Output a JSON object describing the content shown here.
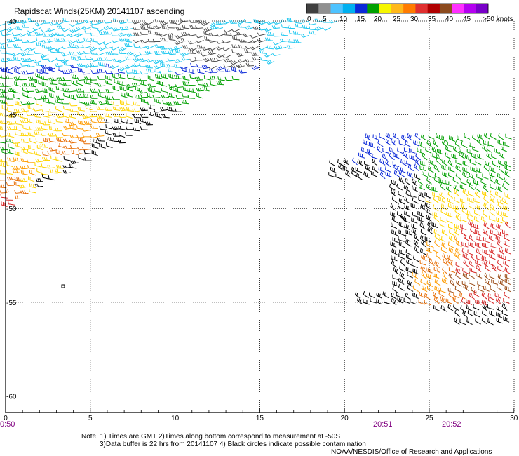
{
  "title": "Rapidscat Winds(25KM) 20141107 ascending",
  "legend": {
    "labels": [
      "0",
      "5",
      "10",
      "15",
      "20",
      "25",
      "30",
      "35",
      "40",
      "45",
      ">50 knots"
    ],
    "colors": [
      "#404040",
      "#909090",
      "#4ec3ff",
      "#00b0f0",
      "#0a28d8",
      "#00a000",
      "#f6f600",
      "#ffb81a",
      "#ff7b00",
      "#e03030",
      "#b00000",
      "#8b4a1e",
      "#ff30ff",
      "#b400f0",
      "#7800c8"
    ]
  },
  "lat_labels": [
    "-40",
    "-45",
    "-50",
    "-55",
    "-60"
  ],
  "lon_labels": [
    "0",
    "5",
    "10",
    "15",
    "20",
    "25",
    "30"
  ],
  "time_labels": [
    "0:50",
    "20:51",
    "20:52"
  ],
  "notes": {
    "line1": "Note: 1) Times are GMT 2)Times along bottom correspond to measurement at -50S",
    "line2": "3)Data buffer is 22 hrs from 20141107 4) Black circles indicate possible contamination",
    "credit": "NOAA/NESDIS/Office of Research and Applications"
  },
  "colors": {
    "time": "#800080",
    "grid": "#000000",
    "circle": "#000000"
  }
}
